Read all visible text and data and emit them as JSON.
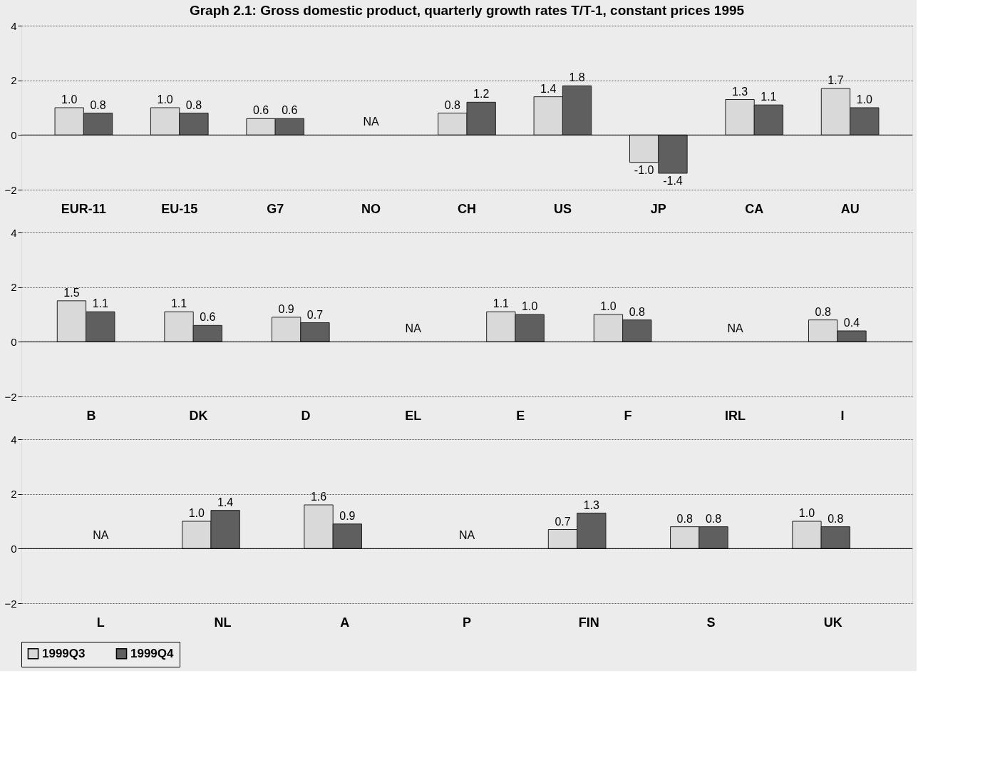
{
  "chart_data": [
    {
      "type": "bar",
      "title": "Graph 2.1: Gross domestic product, quarterly growth rates T/T-1, constant prices 1995",
      "categories": [
        "EUR-11",
        "EU-15",
        "G7",
        "NO",
        "CH",
        "US",
        "JP",
        "CA",
        "AU"
      ],
      "series": [
        {
          "color": "#d9d9d9",
          "values": [
            1.0,
            1.0,
            0.6,
            null,
            0.8,
            1.4,
            -1.0,
            1.3,
            1.7
          ],
          "value_labels": [
            "1.0",
            "1.0",
            "0.6",
            null,
            "0.8",
            "1.4",
            "-1.0",
            "1.3",
            "1.7"
          ]
        },
        {
          "color": "#5f5f5f",
          "values": [
            0.8,
            0.8,
            0.6,
            null,
            1.2,
            1.8,
            -1.4,
            1.1,
            1.0
          ],
          "value_labels": [
            "0.8",
            "0.8",
            "0.6",
            null,
            "1.2",
            "1.8",
            "-1.4",
            "1.1",
            "1.0"
          ]
        }
      ],
      "ylim": [
        -2,
        4
      ],
      "yticks": [
        -2,
        0,
        2,
        4
      ],
      "grid": "y",
      "legend": false,
      "annotations": [
        "NA"
      ]
    },
    {
      "type": "bar",
      "categories": [
        "B",
        "DK",
        "D",
        "EL",
        "E",
        "F",
        "IRL",
        "I"
      ],
      "series": [
        {
          "color": "#d9d9d9",
          "values": [
            1.5,
            1.1,
            0.9,
            null,
            1.1,
            1.0,
            null,
            0.8
          ],
          "value_labels": [
            "1.5",
            "1.1",
            "0.9",
            null,
            "1.1",
            "1.0",
            null,
            "0.8"
          ]
        },
        {
          "color": "#5f5f5f",
          "values": [
            1.1,
            0.6,
            0.7,
            null,
            1.0,
            0.8,
            null,
            0.4
          ],
          "value_labels": [
            "1.1",
            "0.6",
            "0.7",
            null,
            "1.0",
            "0.8",
            null,
            "0.4"
          ]
        }
      ],
      "ylim": [
        -2,
        4
      ],
      "yticks": [
        -2,
        0,
        2,
        4
      ],
      "grid": "y",
      "legend": false,
      "annotations": [
        "NA",
        "NA"
      ]
    },
    {
      "type": "bar",
      "categories": [
        "L",
        "NL",
        "A",
        "P",
        "FIN",
        "S",
        "UK"
      ],
      "series": [
        {
          "name": "1999Q3",
          "color": "#d9d9d9",
          "values": [
            null,
            1.0,
            1.6,
            null,
            0.7,
            0.8,
            1.0
          ],
          "value_labels": [
            null,
            "1.0",
            "1.6",
            null,
            "0.7",
            "0.8",
            "1.0"
          ]
        },
        {
          "name": "1999Q4",
          "color": "#5f5f5f",
          "values": [
            null,
            1.4,
            0.9,
            null,
            1.3,
            0.8,
            0.8
          ],
          "value_labels": [
            null,
            "1.4",
            "0.9",
            null,
            "1.3",
            "0.8",
            "0.8"
          ]
        }
      ],
      "ylim": [
        -2,
        4
      ],
      "yticks": [
        -2,
        0,
        2,
        4
      ],
      "grid": "y",
      "legend": "bottom",
      "annotations": [
        "NA",
        "NA"
      ]
    }
  ]
}
